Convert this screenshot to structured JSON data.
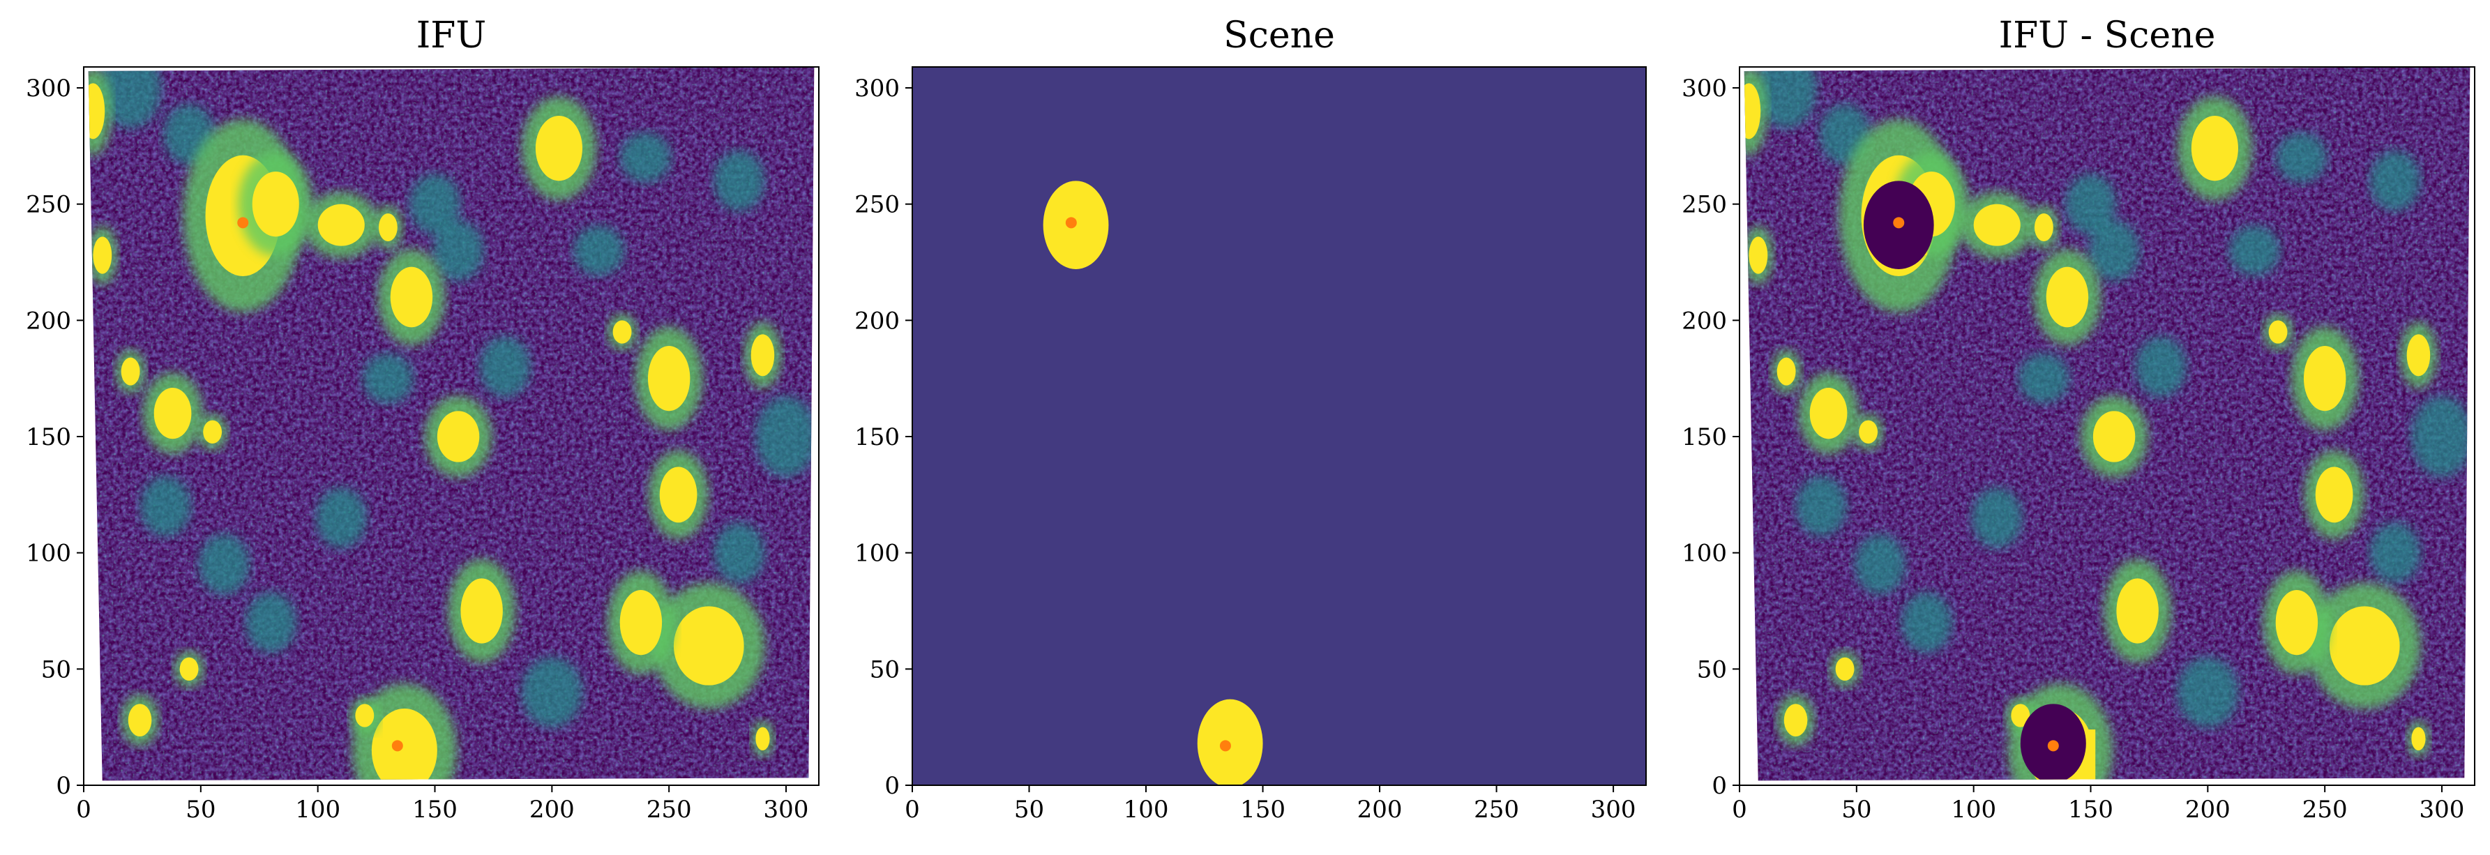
{
  "colors": {
    "background_panel": "#433a80",
    "noise_dark": "#440154",
    "noise_mid": "#3b528b",
    "noise_teal": "#21918c",
    "noise_green": "#5ec962",
    "source_yellow": "#fde725",
    "subtracted_dark": "#440154",
    "marker_orange": "#ff7f0e",
    "axis": "#000000"
  },
  "chart_data": [
    {
      "type": "heatmap",
      "title": "IFU",
      "xlabel": "",
      "ylabel": "",
      "xlim": [
        0,
        314
      ],
      "ylim": [
        0,
        309
      ],
      "xticks": [
        0,
        50,
        100,
        150,
        200,
        250,
        300
      ],
      "yticks": [
        0,
        50,
        100,
        150,
        200,
        250,
        300
      ],
      "colormap": "viridis",
      "content": "noisy IFU image with bright sources",
      "markers": [
        {
          "x": 68,
          "y": 242
        },
        {
          "x": 134,
          "y": 17
        }
      ]
    },
    {
      "type": "heatmap",
      "title": "Scene",
      "xlabel": "",
      "ylabel": "",
      "xlim": [
        0,
        314
      ],
      "ylim": [
        0,
        309
      ],
      "xticks": [
        0,
        50,
        100,
        150,
        200,
        250,
        300
      ],
      "yticks": [
        0,
        50,
        100,
        150,
        200,
        250,
        300
      ],
      "colormap": "viridis",
      "content": "uniform background with two model sources",
      "sources": [
        {
          "x": 70,
          "y": 241,
          "rx": 14,
          "ry": 19
        },
        {
          "x": 136,
          "y": 18,
          "rx": 14,
          "ry": 19
        }
      ],
      "markers": [
        {
          "x": 68,
          "y": 242
        },
        {
          "x": 134,
          "y": 17
        }
      ]
    },
    {
      "type": "heatmap",
      "title": "IFU - Scene",
      "xlabel": "",
      "ylabel": "",
      "xlim": [
        0,
        314
      ],
      "ylim": [
        0,
        309
      ],
      "xticks": [
        0,
        50,
        100,
        150,
        200,
        250,
        300
      ],
      "yticks": [
        0,
        50,
        100,
        150,
        200,
        250,
        300
      ],
      "colormap": "viridis",
      "content": "residual image with two subtracted sources",
      "markers": [
        {
          "x": 68,
          "y": 242
        },
        {
          "x": 134,
          "y": 17
        }
      ]
    }
  ]
}
